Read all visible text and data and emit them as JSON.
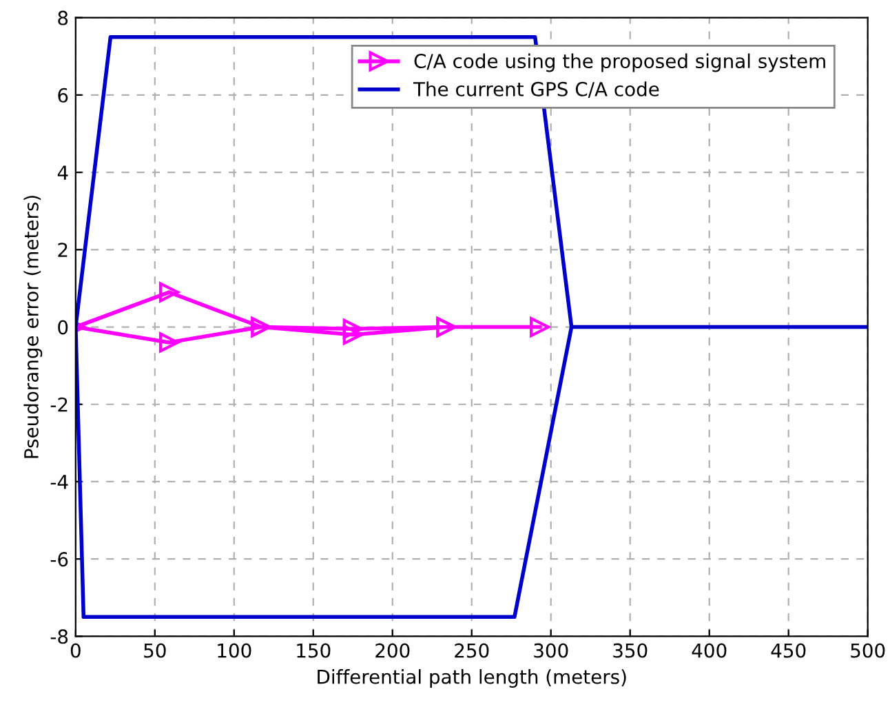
{
  "chart_data": {
    "type": "line",
    "xlabel": "Differential path length (meters)",
    "ylabel": "Pseudorange error (meters)",
    "xlim": [
      0,
      500
    ],
    "ylim": [
      -8,
      8
    ],
    "xticks": [
      0,
      50,
      100,
      150,
      200,
      250,
      300,
      350,
      400,
      450,
      500
    ],
    "yticks": [
      -8,
      -6,
      -4,
      -2,
      0,
      2,
      4,
      6,
      8
    ],
    "grid": true,
    "legend": "top right",
    "series": [
      {
        "name": "C/A code using the proposed signal system",
        "color": "#ff00ff",
        "marker": "triangle",
        "x": [
          293,
          234,
          175,
          117,
          59,
          0,
          59,
          117,
          175,
          234
        ],
        "values": [
          0,
          0,
          -0.05,
          0,
          0.9,
          0,
          -0.4,
          0,
          -0.2,
          0
        ]
      },
      {
        "name": "The current GPS C/A code",
        "color": "#0000cc",
        "marker": "none",
        "x": [
          500,
          313,
          290,
          22,
          0,
          5,
          277,
          313
        ],
        "values": [
          0,
          0,
          7.5,
          7.5,
          0,
          -7.5,
          -7.5,
          0
        ]
      }
    ]
  }
}
